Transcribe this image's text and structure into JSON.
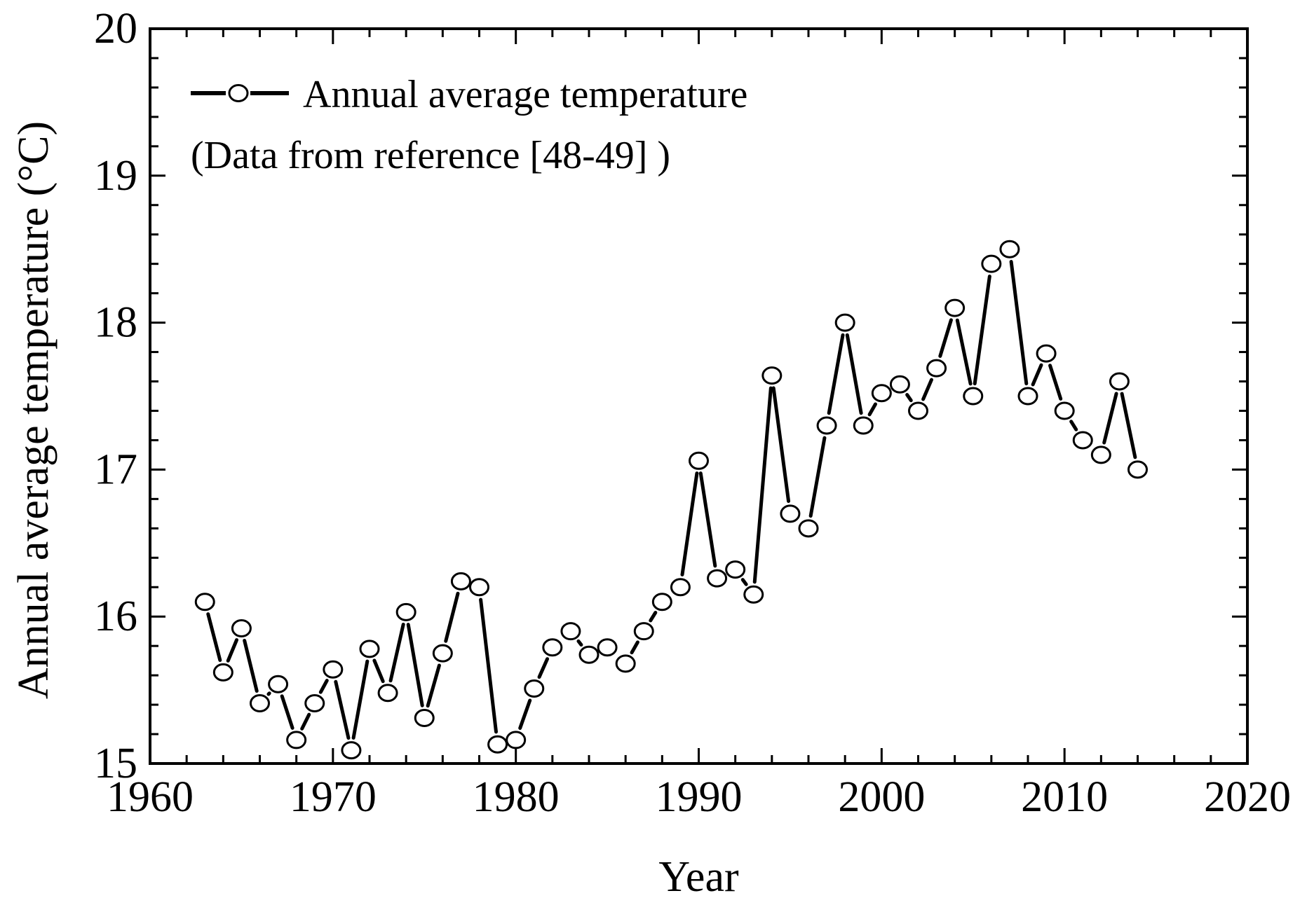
{
  "chart_data": {
    "type": "line",
    "xlabel": "Year",
    "ylabel": "Annual average temperature (°C)",
    "xlim": [
      1960,
      2020
    ],
    "ylim": [
      15,
      20
    ],
    "x_ticks": [
      1960,
      1970,
      1980,
      1990,
      2000,
      2010,
      2020
    ],
    "y_ticks": [
      15,
      16,
      17,
      18,
      19,
      20
    ],
    "x_tick_labels": [
      "1960",
      "1970",
      "1980",
      "1990",
      "2000",
      "2010",
      "2020"
    ],
    "y_tick_labels": [
      "15",
      "16",
      "17",
      "18",
      "19",
      "20"
    ],
    "legend_position": "top-left",
    "colors": {
      "line": "#000000",
      "marker_fill": "#ffffff",
      "axis": "#000000"
    },
    "series": [
      {
        "name": "Annual average temperature",
        "x": [
          1963,
          1964,
          1965,
          1966,
          1967,
          1968,
          1969,
          1970,
          1971,
          1972,
          1973,
          1974,
          1975,
          1976,
          1977,
          1978,
          1979,
          1980,
          1981,
          1982,
          1983,
          1984,
          1985,
          1986,
          1987,
          1988,
          1989,
          1990,
          1991,
          1992,
          1993,
          1994,
          1995,
          1996,
          1997,
          1998,
          1999,
          2000,
          2001,
          2002,
          2003,
          2004,
          2005,
          2006,
          2007,
          2008,
          2009,
          2010,
          2011,
          2012,
          2013,
          2014
        ],
        "y": [
          16.1,
          15.62,
          15.92,
          15.41,
          15.54,
          15.16,
          15.41,
          15.64,
          15.09,
          15.78,
          15.48,
          16.03,
          15.31,
          15.75,
          16.24,
          16.2,
          15.13,
          15.16,
          15.51,
          15.79,
          15.9,
          15.74,
          15.79,
          15.68,
          15.9,
          16.1,
          16.2,
          17.06,
          16.26,
          16.32,
          16.15,
          17.64,
          16.7,
          16.6,
          17.3,
          18.0,
          17.3,
          17.52,
          17.58,
          17.4,
          17.69,
          18.1,
          17.5,
          18.4,
          18.5,
          17.5,
          17.79,
          17.4,
          17.2,
          17.1,
          17.6,
          17.0
        ]
      }
    ],
    "legend": {
      "series_label": "Annual average temperature",
      "note": "(Data from reference [48-49] )"
    }
  }
}
